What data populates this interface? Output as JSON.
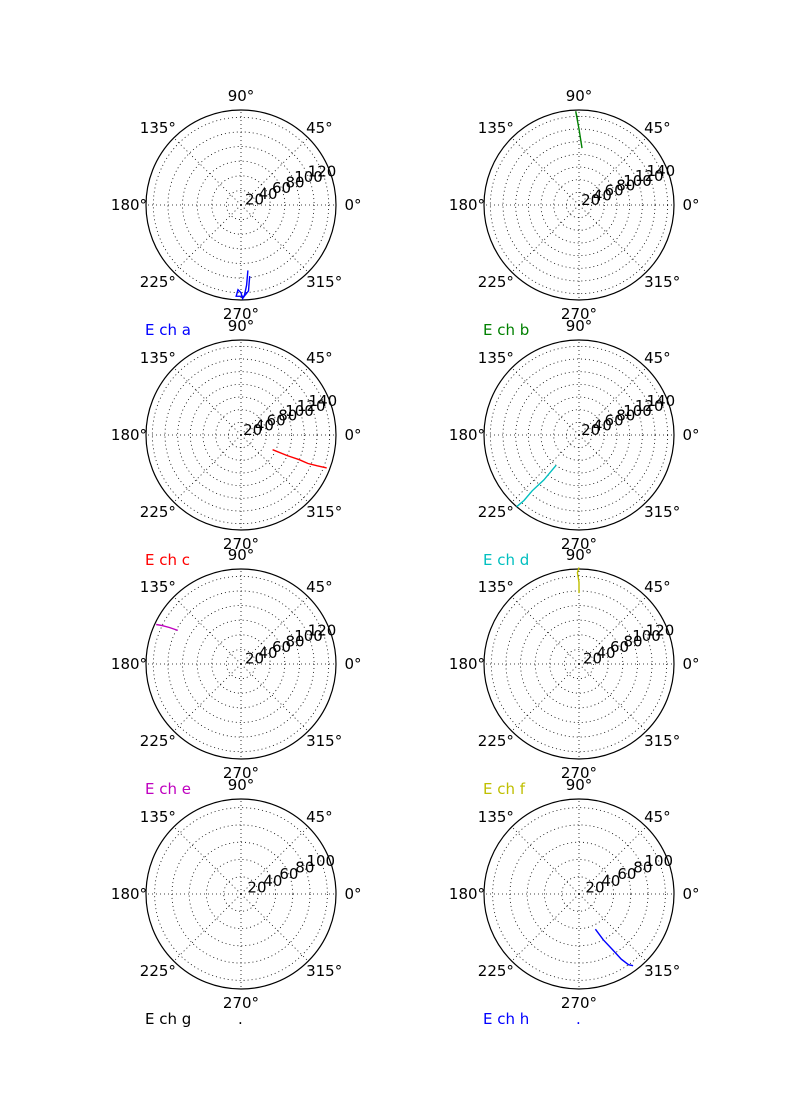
{
  "chart_data": [
    {
      "type": "line",
      "subtype": "polar",
      "label": "E ch a",
      "color": "#0000ff",
      "theta_labels": [
        "0°",
        "45°",
        "90°",
        "135°",
        "180°",
        "225°",
        "270°",
        "315°"
      ],
      "r_ticks": [
        20,
        40,
        60,
        80,
        100,
        120
      ],
      "rlim": [
        0,
        130
      ],
      "grid": true,
      "series": [
        {
          "theta": [
            276,
            274,
            272,
            271,
            270,
            268,
            267,
            272,
            275,
            277
          ],
          "r": [
            90,
            110,
            125,
            128,
            120,
            116,
            125,
            125,
            118,
            98
          ]
        }
      ]
    },
    {
      "type": "line",
      "subtype": "polar",
      "label": "E ch b",
      "color": "#008000",
      "theta_labels": [
        "0°",
        "45°",
        "90°",
        "135°",
        "180°",
        "225°",
        "270°",
        "315°"
      ],
      "r_ticks": [
        20,
        40,
        60,
        80,
        100,
        120,
        140
      ],
      "rlim": [
        0,
        150
      ],
      "grid": true,
      "series": [
        {
          "theta": [
            87,
            90,
            92,
            91
          ],
          "r": [
            90,
            120,
            148,
            135
          ]
        }
      ]
    },
    {
      "type": "line",
      "subtype": "polar",
      "label": "E ch c",
      "color": "#ff0000",
      "theta_labels": [
        "0°",
        "45°",
        "90°",
        "135°",
        "180°",
        "225°",
        "270°",
        "315°"
      ],
      "r_ticks": [
        20,
        40,
        60,
        80,
        100,
        120,
        140
      ],
      "rlim": [
        0,
        150
      ],
      "grid": true,
      "series": [
        {
          "theta": [
            335,
            336,
            337,
            337,
            338,
            339
          ],
          "r": [
            55,
            80,
            100,
            115,
            130,
            145
          ]
        }
      ]
    },
    {
      "type": "line",
      "subtype": "polar",
      "label": "E ch d",
      "color": "#00bfbf",
      "theta_labels": [
        "0°",
        "45°",
        "90°",
        "135°",
        "180°",
        "225°",
        "270°",
        "315°"
      ],
      "r_ticks": [
        20,
        40,
        60,
        80,
        100,
        120,
        140
      ],
      "rlim": [
        0,
        150
      ],
      "grid": true,
      "series": [
        {
          "theta": [
            233,
            232,
            230,
            230,
            229
          ],
          "r": [
            60,
            90,
            115,
            135,
            150
          ]
        }
      ]
    },
    {
      "type": "line",
      "subtype": "polar",
      "label": "E ch e",
      "color": "#bf00bf",
      "theta_labels": [
        "0°",
        "45°",
        "90°",
        "135°",
        "180°",
        "225°",
        "270°",
        "315°"
      ],
      "r_ticks": [
        20,
        40,
        60,
        80,
        100,
        120
      ],
      "rlim": [
        0,
        130
      ],
      "grid": true,
      "series": [
        {
          "theta": [
            152,
            153,
            154,
            155
          ],
          "r": [
            98,
            110,
            120,
            128
          ]
        }
      ]
    },
    {
      "type": "line",
      "subtype": "polar",
      "label": "E ch f",
      "color": "#bfbf00",
      "theta_labels": [
        "0°",
        "45°",
        "90°",
        "135°",
        "180°",
        "225°",
        "270°",
        "315°"
      ],
      "r_ticks": [
        20,
        40,
        60,
        80,
        100,
        120
      ],
      "rlim": [
        0,
        130
      ],
      "grid": true,
      "series": [
        {
          "theta": [
            90,
            90,
            91,
            90
          ],
          "r": [
            97,
            112,
            125,
            132
          ]
        }
      ]
    },
    {
      "type": "line",
      "subtype": "polar",
      "label": "E ch g",
      "color": "#000000",
      "extra_text": ".",
      "theta_labels": [
        "0°",
        "45°",
        "90°",
        "135°",
        "180°",
        "225°",
        "270°",
        "315°"
      ],
      "r_ticks": [
        20,
        40,
        60,
        80,
        100
      ],
      "rlim": [
        0,
        110
      ],
      "grid": true,
      "series": []
    },
    {
      "type": "line",
      "subtype": "polar",
      "label": "E ch h",
      "color": "#0000ff",
      "extra_text": ".",
      "theta_labels": [
        "0°",
        "45°",
        "90°",
        "135°",
        "180°",
        "225°",
        "270°",
        "315°"
      ],
      "r_ticks": [
        20,
        40,
        60,
        80,
        100
      ],
      "rlim": [
        0,
        110
      ],
      "grid": true,
      "series": [
        {
          "theta": [
            295,
            298,
            301,
            303,
            305,
            307
          ],
          "r": [
            45,
            60,
            75,
            90,
            100,
            104
          ]
        }
      ]
    }
  ]
}
